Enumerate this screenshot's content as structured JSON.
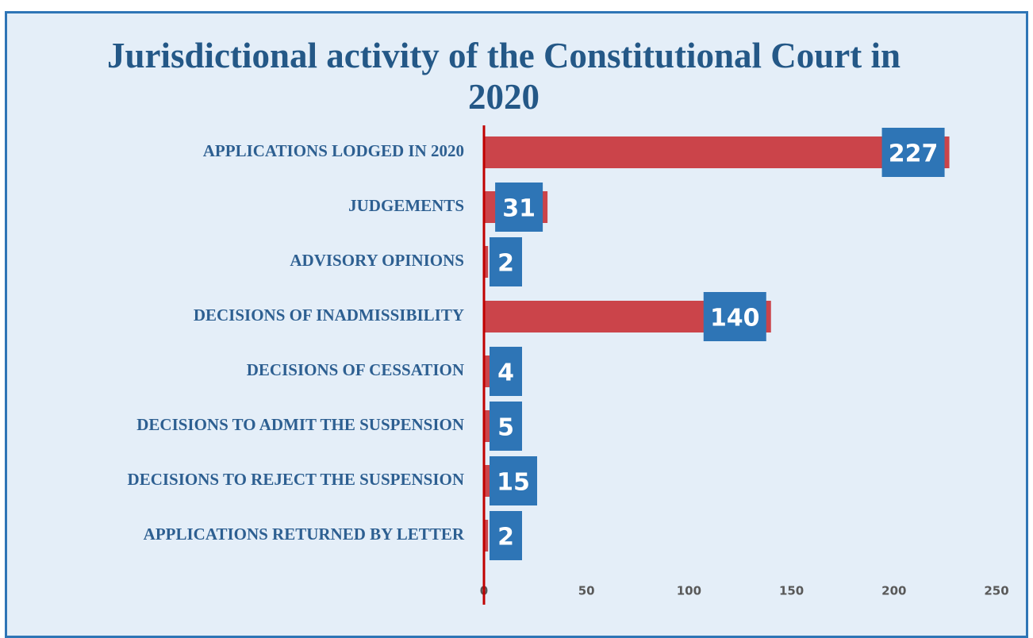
{
  "chart_data": {
    "type": "bar",
    "orientation": "horizontal",
    "title": "Jurisdictional activity of the Constitutional Court in 2020",
    "categories": [
      "APPLICATIONS LODGED IN 2020",
      "JUDGEMENTS",
      "ADVISORY OPINIONS",
      "DECISIONS OF INADMISSIBILITY",
      "DECISIONS OF CESSATION",
      "DECISIONS TO ADMIT THE SUSPENSION",
      "DECISIONS TO REJECT THE SUSPENSION",
      "APPLICATIONS RETURNED BY LETTER"
    ],
    "values": [
      227,
      31,
      2,
      140,
      4,
      5,
      15,
      2
    ],
    "color": "#cb444a",
    "label_color": "#2e75b6",
    "xlim": [
      0,
      250
    ],
    "xticks": [
      0,
      50,
      100,
      150,
      200,
      250
    ],
    "grid": false
  }
}
